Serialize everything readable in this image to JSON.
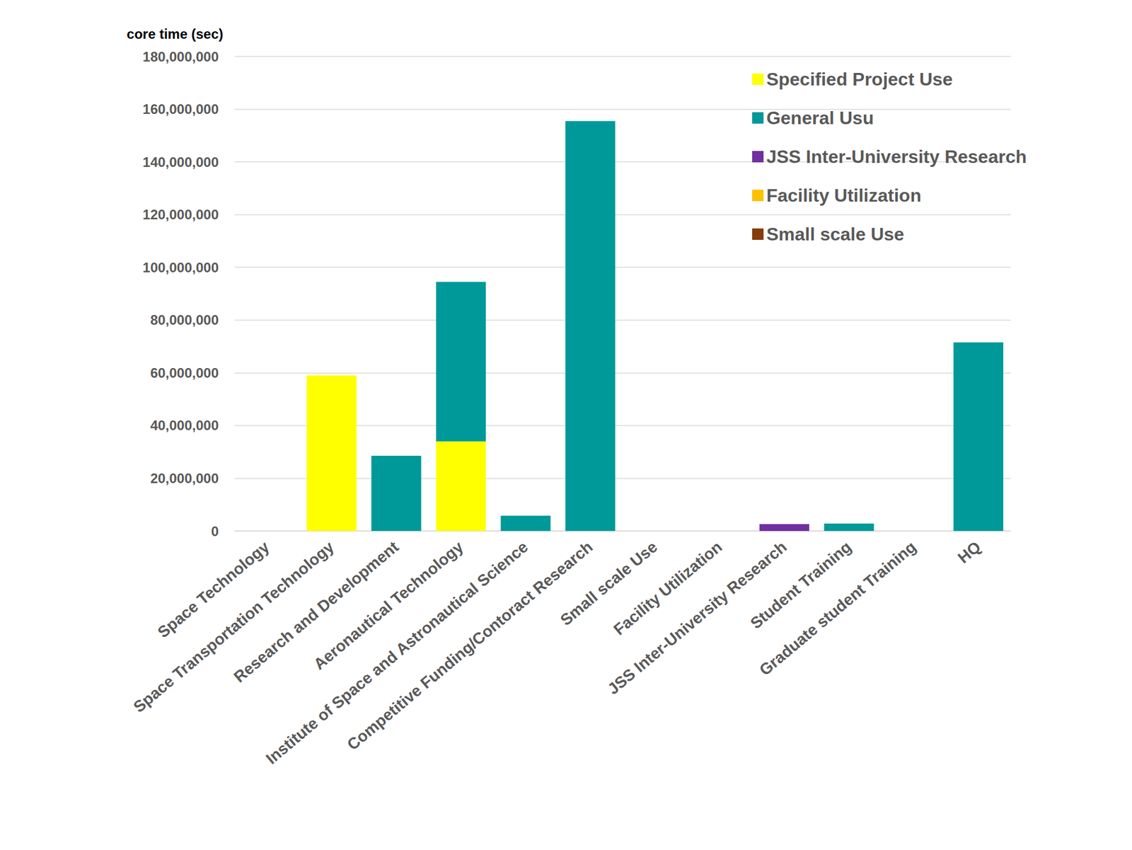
{
  "chart_data": {
    "type": "bar",
    "stacked": true,
    "y_label": "core time (sec)",
    "categories": [
      "Space Technology",
      "Space Transportation Technology",
      "Research and Development",
      "Aeronautical Technology",
      "Institute of Space and Astronautical Science",
      "Competitive Funding/Contoract Research",
      "Small scale Use",
      "Facility Utilization",
      "JSS Inter-University Research",
      "Student Training",
      "Graduate student Training",
      "HQ"
    ],
    "series": [
      {
        "name": "Specified Project Use",
        "color": "#ffff00",
        "values": [
          0,
          59000000,
          0,
          34000000,
          0,
          0,
          0,
          0,
          0,
          0,
          0,
          0
        ]
      },
      {
        "name": "General Usu",
        "color": "#009999",
        "values": [
          0,
          0,
          28500000,
          60500000,
          5800000,
          155500000,
          0,
          0,
          0,
          2800000,
          0,
          71500000
        ]
      },
      {
        "name": "JSS Inter-University Research",
        "color": "#7030a0",
        "values": [
          0,
          0,
          0,
          0,
          0,
          0,
          0,
          0,
          2600000,
          0,
          0,
          0
        ]
      },
      {
        "name": "Facility Utilization",
        "color": "#ffc000",
        "values": [
          0,
          0,
          0,
          0,
          0,
          0,
          0,
          0,
          0,
          0,
          0,
          0
        ]
      },
      {
        "name": "Small scale Use",
        "color": "#843c0c",
        "values": [
          0,
          0,
          0,
          0,
          0,
          0,
          0,
          0,
          0,
          0,
          0,
          0
        ]
      }
    ],
    "ylim": [
      0,
      180000000
    ],
    "yticks": [
      0,
      {
        "value": 20000000,
        "label": "20,000,000"
      },
      {
        "value": 40000000,
        "label": "40,000,000"
      },
      {
        "value": 60000000,
        "label": "60,000,000"
      },
      {
        "value": 80000000,
        "label": "80,000,000"
      },
      {
        "value": 100000000,
        "label": "100,000,000"
      },
      {
        "value": 120000000,
        "label": "120,000,000"
      },
      {
        "value": 140000000,
        "label": "140,000,000"
      },
      {
        "value": 160000000,
        "label": "160,000,000"
      },
      {
        "value": 180000000,
        "label": "180,000,000"
      }
    ],
    "grid": true,
    "legend": "upper right"
  }
}
